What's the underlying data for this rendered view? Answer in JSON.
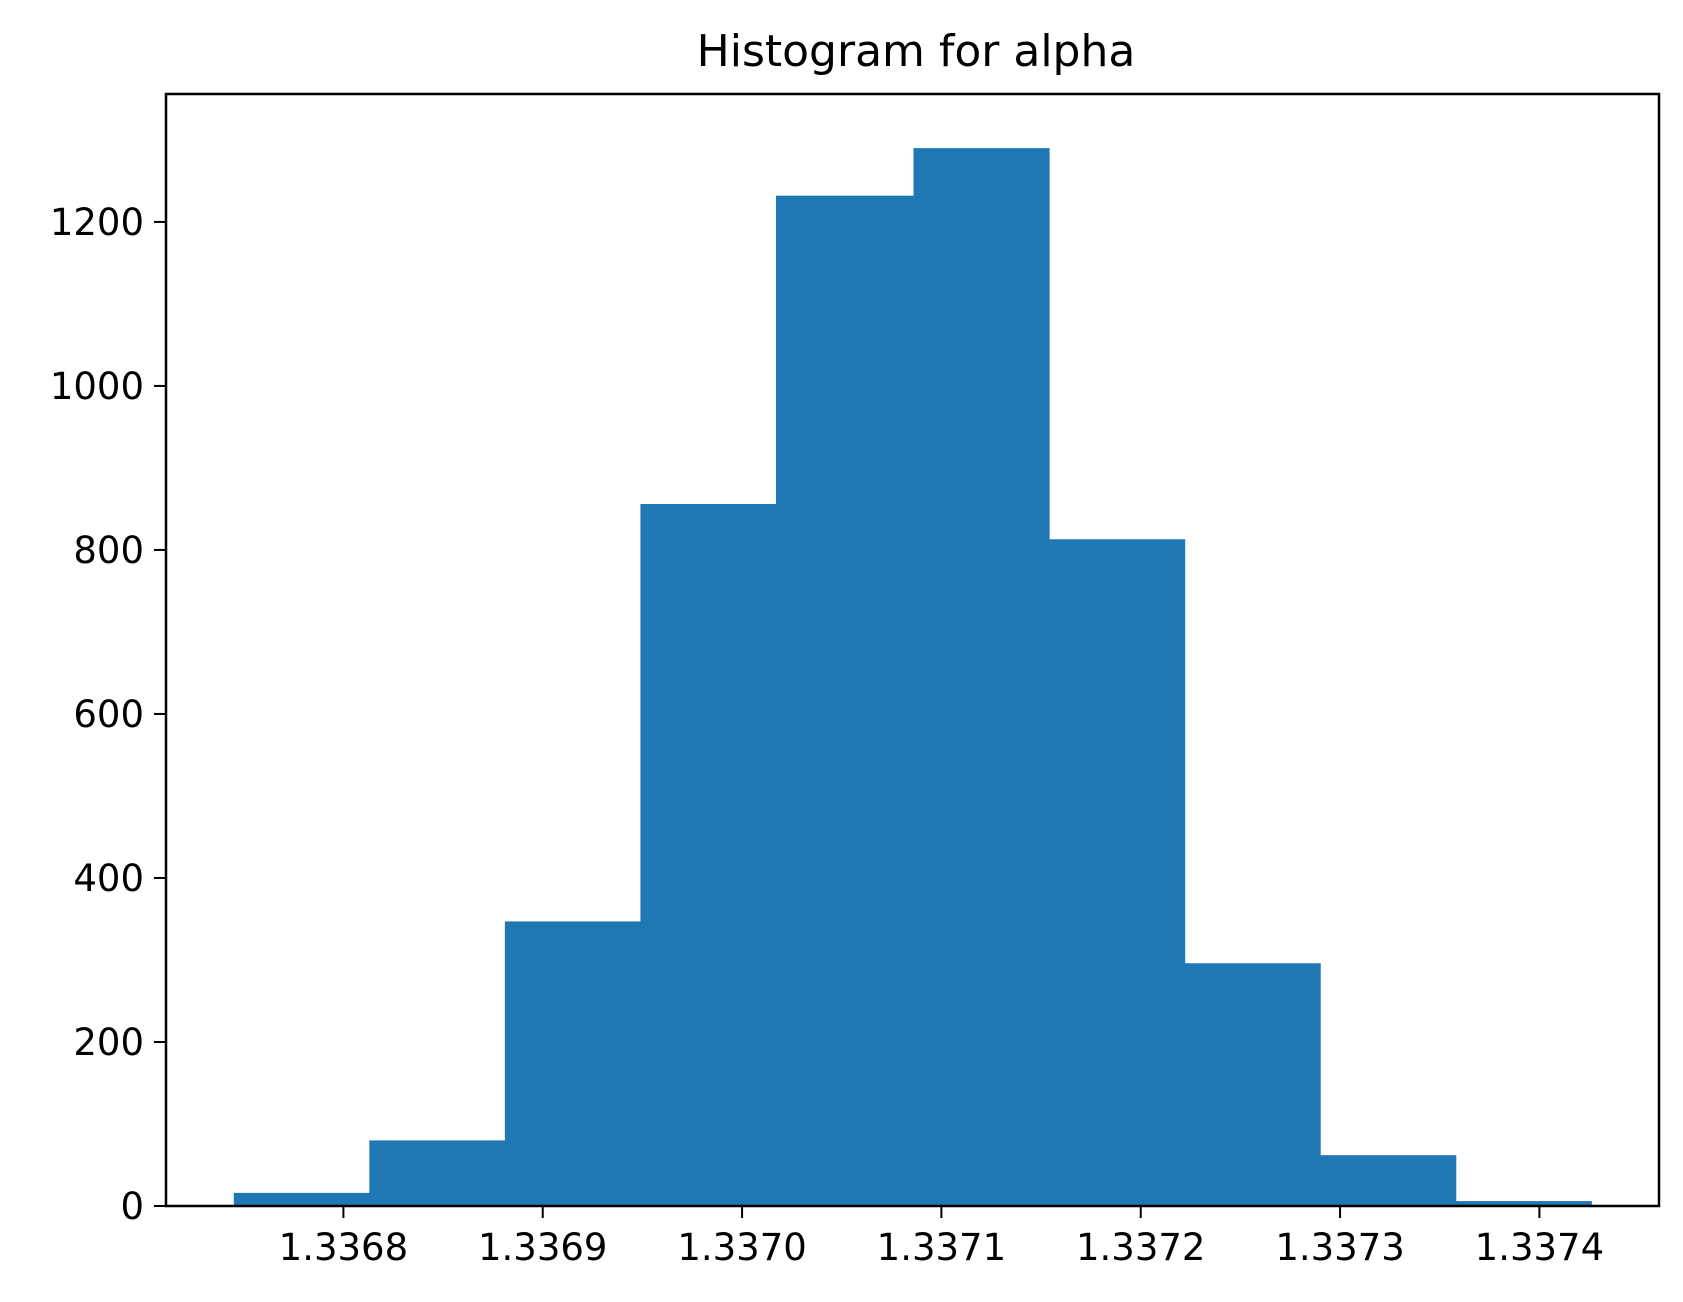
{
  "chart_data": {
    "type": "bar",
    "title": "Histogram for alpha",
    "xlabel": "",
    "ylabel": "",
    "bar_color": "#1f77b4",
    "bins": [
      {
        "x0": 1.336745,
        "x1": 1.336813,
        "count": 16
      },
      {
        "x0": 1.336813,
        "x1": 1.336881,
        "count": 80
      },
      {
        "x0": 1.336881,
        "x1": 1.336949,
        "count": 347
      },
      {
        "x0": 1.336949,
        "x1": 1.337017,
        "count": 856
      },
      {
        "x0": 1.337017,
        "x1": 1.337086,
        "count": 1232
      },
      {
        "x0": 1.337086,
        "x1": 1.337154,
        "count": 1290
      },
      {
        "x0": 1.337154,
        "x1": 1.337222,
        "count": 813
      },
      {
        "x0": 1.337222,
        "x1": 1.33729,
        "count": 296
      },
      {
        "x0": 1.33729,
        "x1": 1.337358,
        "count": 62
      },
      {
        "x0": 1.337358,
        "x1": 1.337426,
        "count": 6
      }
    ],
    "xlim": [
      1.336711,
      1.33746
    ],
    "ylim": [
      0,
      1356
    ],
    "x_ticks": [
      {
        "value": 1.3368,
        "label": "1.3368"
      },
      {
        "value": 1.3369,
        "label": "1.3369"
      },
      {
        "value": 1.337,
        "label": "1.3370"
      },
      {
        "value": 1.3371,
        "label": "1.3371"
      },
      {
        "value": 1.3372,
        "label": "1.3372"
      },
      {
        "value": 1.3373,
        "label": "1.3373"
      },
      {
        "value": 1.3374,
        "label": "1.3374"
      }
    ],
    "y_ticks": [
      {
        "value": 0,
        "label": "0"
      },
      {
        "value": 200,
        "label": "200"
      },
      {
        "value": 400,
        "label": "400"
      },
      {
        "value": 600,
        "label": "600"
      },
      {
        "value": 800,
        "label": "800"
      },
      {
        "value": 1000,
        "label": "1000"
      },
      {
        "value": 1200,
        "label": "1200"
      }
    ],
    "grid": false,
    "legend": "none"
  }
}
